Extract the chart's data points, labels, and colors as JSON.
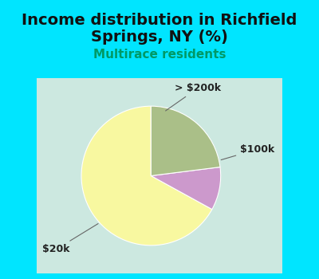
{
  "title_line1": "Income distribution in Richfield",
  "title_line2": "Springs, NY (%)",
  "subtitle": "Multirace residents",
  "title_color": "#111111",
  "subtitle_color": "#009966",
  "background_color": "#00e5ff",
  "chart_bg_color": "#cce8e0",
  "slices": [
    {
      "label": "$20k",
      "value": 67,
      "color": "#f8f8a0"
    },
    {
      "label": "> $200k",
      "value": 10,
      "color": "#cc99cc"
    },
    {
      "label": "$100k",
      "value": 23,
      "color": "#aabf88"
    }
  ],
  "title_fontsize": 14,
  "subtitle_fontsize": 11,
  "label_fontsize": 9,
  "startangle": 90
}
